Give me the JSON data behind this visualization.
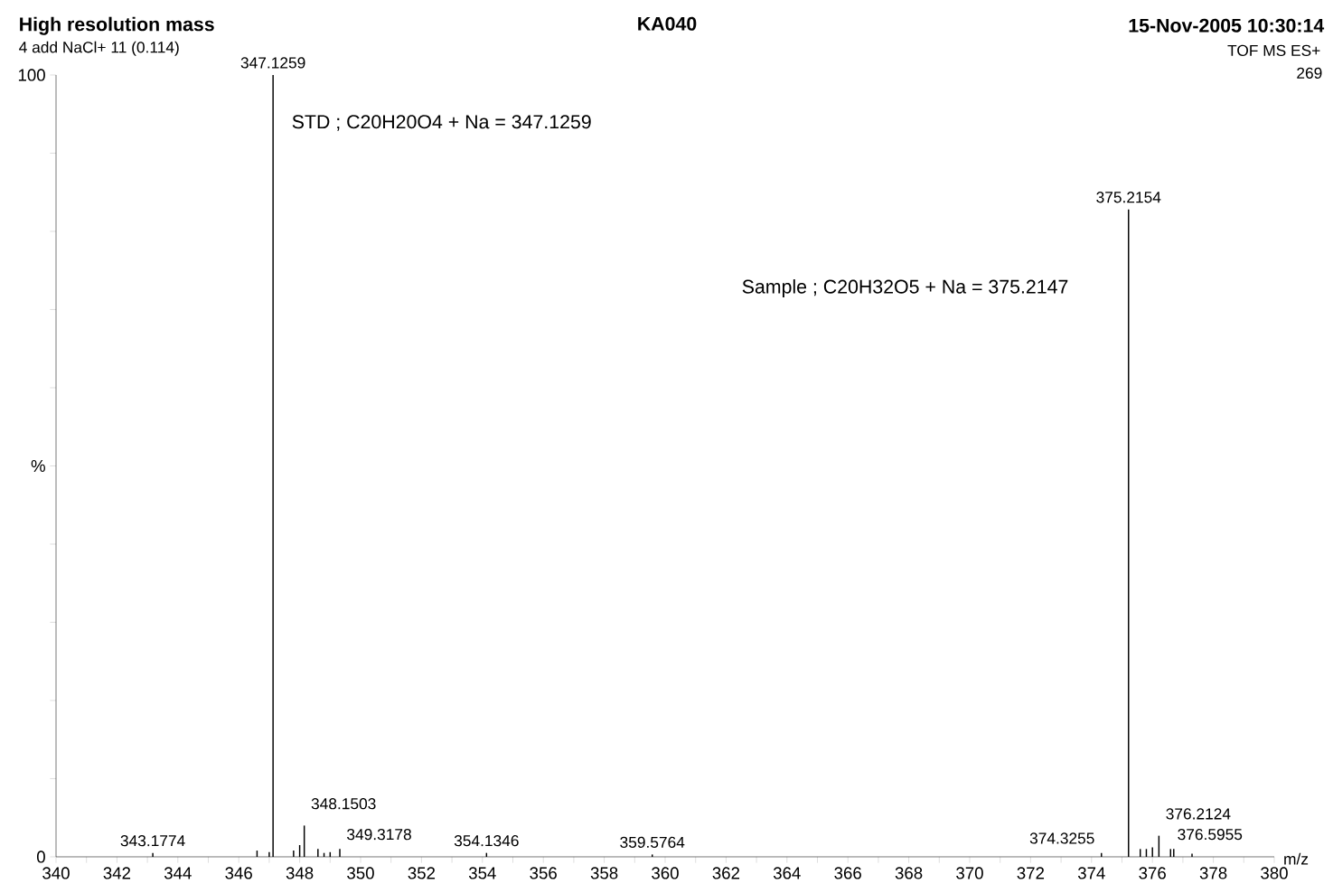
{
  "chart_data": {
    "type": "bar",
    "title": "High resolution mass",
    "subtitle": "4 add NaCl+ 11 (0.114)",
    "xlabel": "m/z",
    "color": "#000000",
    "x": [
      343.1774,
      346.6,
      347.0,
      347.1259,
      347.8,
      348.0,
      348.1503,
      348.6,
      348.8,
      349.0,
      349.3178,
      354.1346,
      359.5764,
      374.3255,
      375.2154,
      375.6,
      375.8,
      376.0,
      376.2124,
      376.5955,
      376.7,
      377.3
    ],
    "values": [
      0.5,
      0.8,
      0.6,
      100,
      0.8,
      1.5,
      4,
      1,
      0.5,
      0.6,
      1,
      0.5,
      0.3,
      0.5,
      82.8,
      1,
      1,
      1.2,
      2.7,
      1,
      1,
      0.4
    ],
    "xlim": [
      340,
      380
    ],
    "ylim": [
      0,
      100
    ],
    "xticks": [
      340,
      {
        "value": 341,
        "label": null
      },
      342,
      {
        "value": 343,
        "label": null
      },
      344,
      {
        "value": 345,
        "label": null
      },
      346,
      {
        "value": 347,
        "label": null
      },
      348,
      {
        "value": 349,
        "label": null
      },
      350,
      {
        "value": 351,
        "label": null
      },
      352,
      {
        "value": 353,
        "label": null
      },
      354,
      {
        "value": 355,
        "label": null
      },
      356,
      {
        "value": 357,
        "label": null
      },
      358,
      {
        "value": 359,
        "label": null
      },
      360,
      {
        "value": 361,
        "label": null
      },
      362,
      {
        "value": 363,
        "label": null
      },
      364,
      {
        "value": 365,
        "label": null
      },
      366,
      {
        "value": 367,
        "label": null
      },
      368,
      {
        "value": 369,
        "label": null
      },
      370,
      {
        "value": 371,
        "label": null
      },
      372,
      {
        "value": 373,
        "label": null
      },
      374,
      {
        "value": 375,
        "label": null
      },
      376,
      {
        "value": 377,
        "label": null
      },
      378,
      {
        "value": 379,
        "label": null
      },
      380
    ],
    "yticks": [
      0,
      {
        "value": 10,
        "label": null
      },
      {
        "value": 20,
        "label": null
      },
      {
        "value": 30,
        "label": null
      },
      {
        "value": 40,
        "label": null
      },
      {
        "value": 50,
        "label": "%"
      },
      {
        "value": 60,
        "label": null
      },
      {
        "value": 70,
        "label": null
      },
      {
        "value": 80,
        "label": null
      },
      {
        "value": 90,
        "label": null
      },
      100
    ],
    "annotations": [
      {
        "text": "347.1259",
        "x": 347.1259,
        "y": 100
      },
      {
        "text": "375.2154",
        "x": 375.2154,
        "y": 82.8
      },
      {
        "text": "348.1503",
        "x": 348.1503,
        "y": 4
      },
      {
        "text": "376.2124",
        "x": 376.2124,
        "y": 2.7
      },
      {
        "text": "343.1774",
        "x": 343.1774,
        "y": 0.5
      },
      {
        "text": "349.3178",
        "x": 349.3178,
        "y": 1
      },
      {
        "text": "354.1346",
        "x": 354.1346,
        "y": 0.5
      },
      {
        "text": "359.5764",
        "x": 359.5764,
        "y": 0.3
      },
      {
        "text": "374.3255",
        "x": 374.3255,
        "y": 0.5
      },
      {
        "text": "376.5955",
        "x": 376.5955,
        "y": 1
      },
      "KA040",
      "15-Nov-2005  10:30:14",
      "TOF MS ES+",
      "269",
      "STD    ; C20H20O4 + Na = 347.1259",
      "Sample ; C20H32O5 + Na = 375.2147"
    ]
  }
}
